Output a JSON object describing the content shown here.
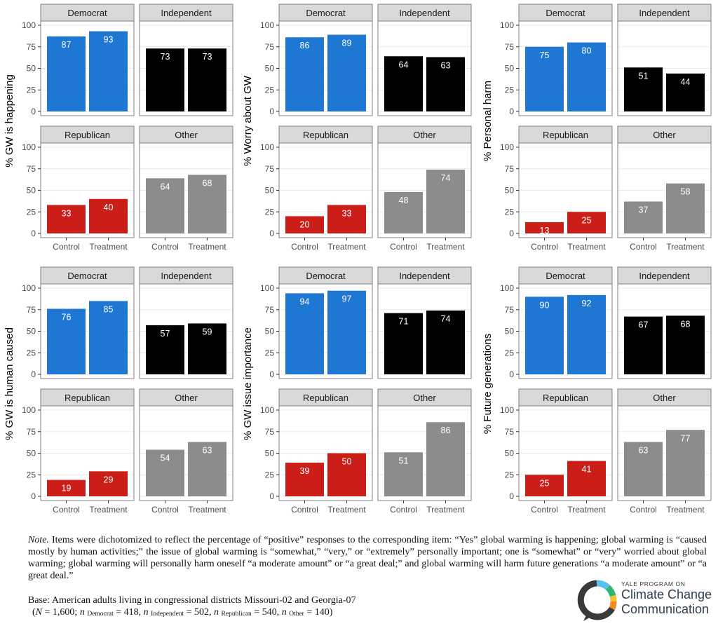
{
  "colors": {
    "Democrat": "#1f77d4",
    "Independent": "#000000",
    "Republican": "#cc1e18",
    "Other": "#8c8c8c",
    "strip": "#d9d9d9",
    "panel_border": "#7f7f7f",
    "grid": "#ebebeb"
  },
  "chart_data": [
    {
      "type": "bar",
      "ylabel": "% GW is happening",
      "categories": [
        "Control",
        "Treatment"
      ],
      "ylim": [
        0,
        100
      ],
      "yticks": [
        0,
        25,
        50,
        75,
        100
      ],
      "facets": [
        {
          "name": "Democrat",
          "values": [
            87,
            93
          ],
          "labels": [
            "87",
            "93"
          ]
        },
        {
          "name": "Independent",
          "values": [
            73,
            73
          ],
          "labels": [
            "73",
            "73"
          ]
        },
        {
          "name": "Republican",
          "values": [
            33,
            40
          ],
          "labels": [
            "33",
            "40"
          ]
        },
        {
          "name": "Other",
          "values": [
            64,
            68
          ],
          "labels": [
            "64",
            "68"
          ]
        }
      ]
    },
    {
      "type": "bar",
      "ylabel": "% Worry about GW",
      "categories": [
        "Control",
        "Treatment"
      ],
      "ylim": [
        0,
        100
      ],
      "yticks": [
        0,
        25,
        50,
        75,
        100
      ],
      "facets": [
        {
          "name": "Democrat",
          "values": [
            86,
            89
          ],
          "labels": [
            "86",
            "89"
          ]
        },
        {
          "name": "Independent",
          "values": [
            64,
            63
          ],
          "labels": [
            "64",
            "63"
          ]
        },
        {
          "name": "Republican",
          "values": [
            20,
            33
          ],
          "labels": [
            "20",
            "33"
          ]
        },
        {
          "name": "Other",
          "values": [
            48,
            74
          ],
          "labels": [
            "48",
            "74"
          ]
        }
      ]
    },
    {
      "type": "bar",
      "ylabel": "% Personal harm",
      "categories": [
        "Control",
        "Treatment"
      ],
      "ylim": [
        0,
        100
      ],
      "yticks": [
        0,
        25,
        50,
        75,
        100
      ],
      "facets": [
        {
          "name": "Democrat",
          "values": [
            75,
            80
          ],
          "labels": [
            "75",
            "80"
          ]
        },
        {
          "name": "Independent",
          "values": [
            51,
            44
          ],
          "labels": [
            "51",
            "44"
          ]
        },
        {
          "name": "Republican",
          "values": [
            13,
            25
          ],
          "labels": [
            "13",
            "25"
          ]
        },
        {
          "name": "Other",
          "values": [
            37,
            58
          ],
          "labels": [
            "37",
            "58"
          ]
        }
      ]
    },
    {
      "type": "bar",
      "ylabel": "% GW is human caused",
      "categories": [
        "Control",
        "Treatment"
      ],
      "ylim": [
        0,
        100
      ],
      "yticks": [
        0,
        25,
        50,
        75,
        100
      ],
      "facets": [
        {
          "name": "Democrat",
          "values": [
            76,
            85
          ],
          "labels": [
            "76",
            "85"
          ]
        },
        {
          "name": "Independent",
          "values": [
            57,
            59
          ],
          "labels": [
            "57",
            "59"
          ]
        },
        {
          "name": "Republican",
          "values": [
            19,
            29
          ],
          "labels": [
            "19",
            "29"
          ]
        },
        {
          "name": "Other",
          "values": [
            54,
            63
          ],
          "labels": [
            "54",
            "63"
          ]
        }
      ]
    },
    {
      "type": "bar",
      "ylabel": "% GW issue importance",
      "categories": [
        "Control",
        "Treatment"
      ],
      "ylim": [
        0,
        100
      ],
      "yticks": [
        0,
        25,
        50,
        75,
        100
      ],
      "facets": [
        {
          "name": "Democrat",
          "values": [
            94,
            97
          ],
          "labels": [
            "94",
            "97"
          ]
        },
        {
          "name": "Independent",
          "values": [
            71,
            74
          ],
          "labels": [
            "71",
            "74"
          ]
        },
        {
          "name": "Republican",
          "values": [
            39,
            50
          ],
          "labels": [
            "39",
            "50"
          ]
        },
        {
          "name": "Other",
          "values": [
            51,
            86
          ],
          "labels": [
            "51",
            "86"
          ]
        }
      ]
    },
    {
      "type": "bar",
      "ylabel": "% Future generations",
      "categories": [
        "Control",
        "Treatment"
      ],
      "ylim": [
        0,
        100
      ],
      "yticks": [
        0,
        25,
        50,
        75,
        100
      ],
      "facets": [
        {
          "name": "Democrat",
          "values": [
            90,
            92
          ],
          "labels": [
            "90",
            "92"
          ]
        },
        {
          "name": "Independent",
          "values": [
            67,
            68
          ],
          "labels": [
            "67",
            "68"
          ]
        },
        {
          "name": "Republican",
          "values": [
            25,
            41
          ],
          "labels": [
            "25",
            "41"
          ]
        },
        {
          "name": "Other",
          "values": [
            63,
            77
          ],
          "labels": [
            "63",
            "77"
          ]
        }
      ]
    }
  ],
  "note": {
    "lead": "Note.",
    "text": "Items were dichotomized to reflect the percentage of “positive” responses to the corresponding item: “Yes” global warming is happening; global warming is “caused mostly by human activities;” the issue of global warming is “somewhat,” “very,” or “extremely” personally important; one is “somewhat” or “very” worried about global warming; global warming will personally harm oneself “a moderate amount” or “a great deal;” and global warming will harm future generations “a moderate amount” or “a great deal.”"
  },
  "base": {
    "line1": "Base: American adults living in congressional districts Missouri-02 and Georgia-07",
    "n_symbol": "N",
    "n_total": "1,600",
    "n_small": "n",
    "groups": [
      {
        "name": "Democrat",
        "n": "418"
      },
      {
        "name": "Independent",
        "n": "502"
      },
      {
        "name": "Republican",
        "n": "540"
      },
      {
        "name": "Other",
        "n": "140"
      }
    ]
  },
  "logo": {
    "small": "YALE PROGRAM ON",
    "line1": "Climate Change",
    "line2": "Communication",
    "ring_colors": [
      "#5bc0eb",
      "#2eb872",
      "#f4c430",
      "#f08a24",
      "#d94f70",
      "#7b4fa0"
    ]
  }
}
